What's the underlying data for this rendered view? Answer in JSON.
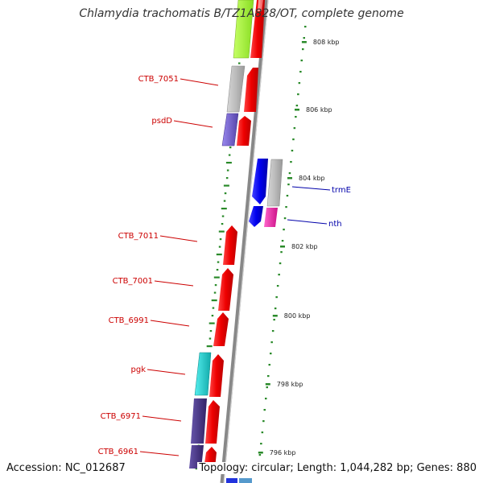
{
  "title": "Chlamydia trachomatis B/TZ1A828/OT, complete genome",
  "footer": {
    "accession": "Accession: NC_012687",
    "topology": "Topology: circular; Length: 1,044,282 bp; Genes: 880"
  },
  "ticks": [
    "808 kbp",
    "806 kbp",
    "804 kbp",
    "802 kbp",
    "800 kbp",
    "798 kbp",
    "796 kbp"
  ],
  "gene_labels": [
    {
      "text": "CTB_7051",
      "side": "left",
      "color": "#cc0000"
    },
    {
      "text": "psdD",
      "side": "left",
      "color": "#cc0000"
    },
    {
      "text": "trmE",
      "side": "right",
      "color": "#0000aa"
    },
    {
      "text": "nth",
      "side": "right",
      "color": "#0000aa"
    },
    {
      "text": "CTB_7011",
      "side": "left",
      "color": "#cc0000"
    },
    {
      "text": "CTB_7001",
      "side": "left",
      "color": "#cc0000"
    },
    {
      "text": "CTB_6991",
      "side": "left",
      "color": "#cc0000"
    },
    {
      "text": "pgk",
      "side": "left",
      "color": "#cc0000"
    },
    {
      "text": "CTB_6971",
      "side": "left",
      "color": "#cc0000"
    },
    {
      "text": "CTB_6961",
      "side": "left",
      "color": "#cc0000"
    }
  ],
  "colors": {
    "backbone": "#8a8a8a",
    "cds_forward": "#ee0000",
    "cds_reverse": "#0000ee",
    "cog_gray": "#bbbbbb",
    "cog_green": "#99ee33",
    "cog_purple": "#7766cc",
    "cog_cyan": "#22cccc",
    "cog_magenta": "#ee22aa",
    "cog_navy": "#443388",
    "cog_lightblue": "#5599cc",
    "gc_dots": "#2a8a2a"
  }
}
